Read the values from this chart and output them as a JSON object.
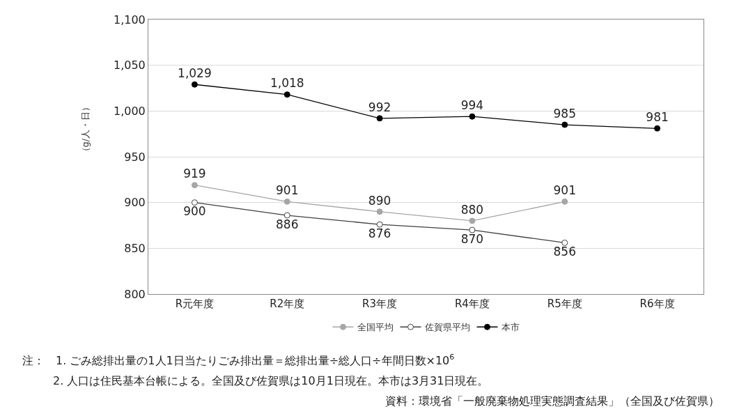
{
  "chart_data": {
    "type": "line",
    "categories": [
      "R元年度",
      "R2年度",
      "R3年度",
      "R4年度",
      "R5年度",
      "R6年度"
    ],
    "series": [
      {
        "name": "全国平均",
        "color": "#a6a6a6",
        "marker": "circle",
        "values": [
          919,
          901,
          890,
          880,
          901,
          null
        ],
        "value_labels": [
          "919",
          "901",
          "890",
          "880",
          "901",
          null
        ]
      },
      {
        "name": "佐賀県平均",
        "color": "#404040",
        "marker": "circle-open",
        "values": [
          900,
          886,
          876,
          870,
          856,
          null
        ],
        "value_labels": [
          "900",
          "886",
          "876",
          "870",
          "856",
          null
        ]
      },
      {
        "name": "本市",
        "color": "#000000",
        "marker": "circle",
        "values": [
          1029,
          1018,
          992,
          994,
          985,
          981
        ],
        "value_labels": [
          "1,029",
          "1,018",
          "992",
          "994",
          "985",
          "981"
        ]
      }
    ],
    "ylabel": "（g/人・日）",
    "ylim": [
      800,
      1100
    ],
    "yticks": [
      800,
      850,
      900,
      950,
      {
        "value": 1000,
        "label": "1,000"
      },
      {
        "value": 1050,
        "label": "1,050"
      },
      {
        "value": 1100,
        "label": "1,100"
      }
    ],
    "grid": "y",
    "legend": "bottom",
    "line_style": "solid",
    "annotations": [
      "注：　1. ごみ総排出量の1人1日当たりごみ排出量＝総排出量÷総人口÷年間日数×10$^{6}$",
      "2. 人口は住民基本台帳による。全国及び佐賀県は10月1日現在。本市は3月31日現在。",
      "資料：環境省「一般廃棄物処理実態調査結果」（全国及び佐賀県）"
    ]
  }
}
